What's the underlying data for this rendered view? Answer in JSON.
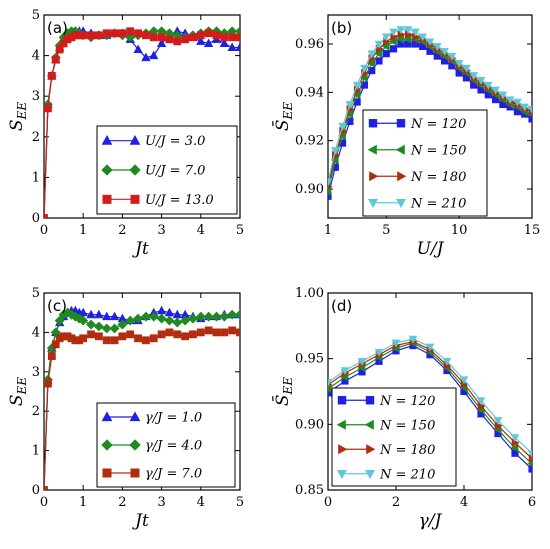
{
  "colors": {
    "blue": "#1f1fe6",
    "green": "#1f8a1f",
    "red": "#d41b1b",
    "brown": "#b02d10",
    "cyan": "#5fc8d8"
  },
  "chart_data": [
    {
      "type": "line",
      "panel_label": "(a)",
      "xlabel": "Jt",
      "ylabel": "S_EE",
      "xlim": [
        0,
        5
      ],
      "ylim": [
        0,
        5
      ],
      "xticks": [
        "0",
        "1",
        "2",
        "3",
        "4",
        "5"
      ],
      "yticks": [
        "0",
        "1",
        "2",
        "3",
        "4",
        "5"
      ],
      "legend_position": "lower-right",
      "series": [
        {
          "name": "U/J = 3.0",
          "marker": "triangle-up",
          "color": "#1f1fe6",
          "x": [
            0,
            0.1,
            0.2,
            0.3,
            0.4,
            0.5,
            0.6,
            0.7,
            0.8,
            0.9,
            1.0,
            1.2,
            1.4,
            1.6,
            1.8,
            2.0,
            2.2,
            2.4,
            2.6,
            2.8,
            3.0,
            3.2,
            3.4,
            3.6,
            3.8,
            4.0,
            4.2,
            4.4,
            4.6,
            4.8,
            5.0
          ],
          "y": [
            0,
            2.8,
            3.5,
            3.9,
            4.2,
            4.4,
            4.5,
            4.55,
            4.6,
            4.6,
            4.6,
            4.55,
            4.5,
            4.5,
            4.55,
            4.55,
            4.4,
            4.15,
            3.95,
            4.0,
            4.3,
            4.5,
            4.6,
            4.55,
            4.45,
            4.35,
            4.3,
            4.4,
            4.3,
            4.2,
            4.2
          ]
        },
        {
          "name": "U/J = 7.0",
          "marker": "diamond",
          "color": "#1f8a1f",
          "x": [
            0,
            0.1,
            0.2,
            0.3,
            0.4,
            0.5,
            0.6,
            0.7,
            0.8,
            0.9,
            1.0,
            1.2,
            1.4,
            1.6,
            1.8,
            2.0,
            2.2,
            2.4,
            2.6,
            2.8,
            3.0,
            3.2,
            3.4,
            3.6,
            3.8,
            4.0,
            4.2,
            4.4,
            4.6,
            4.8,
            5.0
          ],
          "y": [
            0,
            2.8,
            3.5,
            3.95,
            4.25,
            4.45,
            4.55,
            4.6,
            4.6,
            4.55,
            4.5,
            4.45,
            4.5,
            4.5,
            4.55,
            4.5,
            4.45,
            4.5,
            4.55,
            4.6,
            4.6,
            4.55,
            4.5,
            4.45,
            4.5,
            4.55,
            4.6,
            4.6,
            4.55,
            4.6,
            4.6
          ]
        },
        {
          "name": "U/J = 13.0",
          "marker": "square",
          "color": "#d41b1b",
          "x": [
            0,
            0.1,
            0.2,
            0.3,
            0.4,
            0.5,
            0.6,
            0.7,
            0.8,
            0.9,
            1.0,
            1.2,
            1.4,
            1.6,
            1.8,
            2.0,
            2.2,
            2.4,
            2.6,
            2.8,
            3.0,
            3.2,
            3.4,
            3.6,
            3.8,
            4.0,
            4.2,
            4.4,
            4.6,
            4.8,
            5.0
          ],
          "y": [
            0,
            2.7,
            3.5,
            3.9,
            4.15,
            4.3,
            4.4,
            4.45,
            4.5,
            4.5,
            4.5,
            4.5,
            4.5,
            4.55,
            4.55,
            4.55,
            4.6,
            4.55,
            4.5,
            4.45,
            4.45,
            4.4,
            4.35,
            4.4,
            4.45,
            4.5,
            4.55,
            4.5,
            4.45,
            4.45,
            4.45
          ]
        }
      ]
    },
    {
      "type": "line",
      "panel_label": "(b)",
      "xlabel": "U/J",
      "ylabel": "S̄_EE",
      "xlim": [
        1,
        15
      ],
      "ylim": [
        0.888,
        0.972
      ],
      "xticks": [
        "1",
        "5",
        "10",
        "15"
      ],
      "yticks": [
        "0.90",
        "0.92",
        "0.94",
        "0.96"
      ],
      "legend_position": "lower-right",
      "series": [
        {
          "name": "N = 120",
          "marker": "square",
          "color": "#1f1fe6",
          "x": [
            1,
            1.5,
            2,
            2.5,
            3,
            3.5,
            4,
            4.5,
            5,
            5.5,
            6,
            6.5,
            7,
            7.5,
            8,
            8.5,
            9,
            9.5,
            10,
            10.5,
            11,
            11.5,
            12,
            12.5,
            13,
            13.5,
            14,
            14.5,
            15
          ],
          "y": [
            0.897,
            0.909,
            0.919,
            0.928,
            0.936,
            0.943,
            0.949,
            0.953,
            0.956,
            0.958,
            0.96,
            0.96,
            0.96,
            0.959,
            0.957,
            0.955,
            0.953,
            0.951,
            0.948,
            0.946,
            0.943,
            0.941,
            0.939,
            0.937,
            0.935,
            0.934,
            0.932,
            0.931,
            0.929
          ]
        },
        {
          "name": "N = 150",
          "marker": "triangle-left",
          "color": "#1f8a1f",
          "x": [
            1,
            1.5,
            2,
            2.5,
            3,
            3.5,
            4,
            4.5,
            5,
            5.5,
            6,
            6.5,
            7,
            7.5,
            8,
            8.5,
            9,
            9.5,
            10,
            10.5,
            11,
            11.5,
            12,
            12.5,
            13,
            13.5,
            14,
            14.5,
            15
          ],
          "y": [
            0.899,
            0.912,
            0.922,
            0.931,
            0.939,
            0.946,
            0.952,
            0.956,
            0.959,
            0.961,
            0.962,
            0.962,
            0.962,
            0.961,
            0.959,
            0.957,
            0.955,
            0.953,
            0.95,
            0.948,
            0.945,
            0.943,
            0.941,
            0.939,
            0.937,
            0.935,
            0.934,
            0.932,
            0.931
          ]
        },
        {
          "name": "N = 180",
          "marker": "triangle-right",
          "color": "#b02d10",
          "x": [
            1,
            1.5,
            2,
            2.5,
            3,
            3.5,
            4,
            4.5,
            5,
            5.5,
            6,
            6.5,
            7,
            7.5,
            8,
            8.5,
            9,
            9.5,
            10,
            10.5,
            11,
            11.5,
            12,
            12.5,
            13,
            13.5,
            14,
            14.5,
            15
          ],
          "y": [
            0.901,
            0.914,
            0.924,
            0.933,
            0.941,
            0.948,
            0.954,
            0.958,
            0.961,
            0.963,
            0.964,
            0.964,
            0.963,
            0.962,
            0.96,
            0.958,
            0.956,
            0.954,
            0.951,
            0.949,
            0.946,
            0.944,
            0.942,
            0.94,
            0.938,
            0.936,
            0.935,
            0.933,
            0.932
          ]
        },
        {
          "name": "N = 210",
          "marker": "triangle-down",
          "color": "#5fc8d8",
          "x": [
            1,
            1.5,
            2,
            2.5,
            3,
            3.5,
            4,
            4.5,
            5,
            5.5,
            6,
            6.5,
            7,
            7.5,
            8,
            8.5,
            9,
            9.5,
            10,
            10.5,
            11,
            11.5,
            12,
            12.5,
            13,
            13.5,
            14,
            14.5,
            15
          ],
          "y": [
            0.903,
            0.916,
            0.926,
            0.935,
            0.943,
            0.95,
            0.956,
            0.96,
            0.963,
            0.965,
            0.966,
            0.966,
            0.965,
            0.963,
            0.961,
            0.959,
            0.957,
            0.955,
            0.952,
            0.95,
            0.947,
            0.945,
            0.943,
            0.941,
            0.939,
            0.937,
            0.936,
            0.934,
            0.933
          ]
        }
      ]
    },
    {
      "type": "line",
      "panel_label": "(c)",
      "xlabel": "Jt",
      "ylabel": "S_EE",
      "xlim": [
        0,
        5
      ],
      "ylim": [
        0,
        5
      ],
      "xticks": [
        "0",
        "1",
        "2",
        "3",
        "4",
        "5"
      ],
      "yticks": [
        "0",
        "1",
        "2",
        "3",
        "4",
        "5"
      ],
      "legend_position": "lower-right",
      "series": [
        {
          "name": "γ/J = 1.0",
          "marker": "triangle-up",
          "color": "#1f1fe6",
          "x": [
            0,
            0.1,
            0.2,
            0.3,
            0.4,
            0.5,
            0.6,
            0.7,
            0.8,
            0.9,
            1.0,
            1.2,
            1.4,
            1.6,
            1.8,
            2.0,
            2.2,
            2.4,
            2.6,
            2.8,
            3.0,
            3.2,
            3.4,
            3.6,
            3.8,
            4.0,
            4.2,
            4.4,
            4.6,
            4.8,
            5.0
          ],
          "y": [
            0,
            2.8,
            3.6,
            4.0,
            4.25,
            4.4,
            4.5,
            4.55,
            4.55,
            4.5,
            4.5,
            4.45,
            4.45,
            4.4,
            4.4,
            4.35,
            4.3,
            4.3,
            4.4,
            4.5,
            4.55,
            4.5,
            4.45,
            4.45,
            4.4,
            4.35,
            4.4,
            4.4,
            4.45,
            4.45,
            4.45
          ]
        },
        {
          "name": "γ/J = 4.0",
          "marker": "diamond",
          "color": "#1f8a1f",
          "x": [
            0,
            0.1,
            0.2,
            0.3,
            0.4,
            0.5,
            0.6,
            0.7,
            0.8,
            0.9,
            1.0,
            1.2,
            1.4,
            1.6,
            1.8,
            2.0,
            2.2,
            2.4,
            2.6,
            2.8,
            3.0,
            3.2,
            3.4,
            3.6,
            3.8,
            4.0,
            4.2,
            4.4,
            4.6,
            4.8,
            5.0
          ],
          "y": [
            0,
            2.8,
            3.6,
            4.0,
            4.3,
            4.45,
            4.5,
            4.45,
            4.4,
            4.35,
            4.3,
            4.2,
            4.15,
            4.1,
            4.1,
            4.2,
            4.3,
            4.35,
            4.4,
            4.4,
            4.35,
            4.3,
            4.25,
            4.3,
            4.35,
            4.4,
            4.4,
            4.4,
            4.4,
            4.45,
            4.45
          ]
        },
        {
          "name": "γ/J = 7.0",
          "marker": "square",
          "color": "#b02d10",
          "x": [
            0,
            0.1,
            0.2,
            0.3,
            0.4,
            0.5,
            0.6,
            0.7,
            0.8,
            0.9,
            1.0,
            1.2,
            1.4,
            1.6,
            1.8,
            2.0,
            2.2,
            2.4,
            2.6,
            2.8,
            3.0,
            3.2,
            3.4,
            3.6,
            3.8,
            4.0,
            4.2,
            4.4,
            4.6,
            4.8,
            5.0
          ],
          "y": [
            0,
            2.7,
            3.4,
            3.7,
            3.85,
            3.9,
            3.9,
            3.85,
            3.8,
            3.8,
            3.85,
            3.95,
            3.9,
            3.8,
            3.8,
            3.9,
            3.95,
            3.85,
            3.8,
            3.85,
            3.95,
            4.0,
            3.95,
            3.9,
            3.95,
            4.0,
            4.05,
            4.0,
            4.0,
            4.05,
            4.0
          ]
        }
      ]
    },
    {
      "type": "line",
      "panel_label": "(d)",
      "xlabel": "γ/J",
      "ylabel": "S̄_EE",
      "xlim": [
        0,
        6
      ],
      "ylim": [
        0.85,
        1.0
      ],
      "xticks": [
        "0",
        "2",
        "4",
        "6"
      ],
      "yticks": [
        "0.85",
        "0.90",
        "0.95",
        "1.00"
      ],
      "legend_position": "lower-left",
      "series": [
        {
          "name": "N = 120",
          "marker": "square",
          "color": "#1f1fe6",
          "x": [
            0,
            0.5,
            1,
            1.5,
            2,
            2.5,
            3,
            3.5,
            4,
            4.5,
            5,
            5.5,
            6
          ],
          "y": [
            0.924,
            0.933,
            0.94,
            0.948,
            0.956,
            0.96,
            0.953,
            0.941,
            0.925,
            0.908,
            0.893,
            0.878,
            0.866
          ]
        },
        {
          "name": "N = 150",
          "marker": "triangle-left",
          "color": "#1f8a1f",
          "x": [
            0,
            0.5,
            1,
            1.5,
            2,
            2.5,
            3,
            3.5,
            4,
            4.5,
            5,
            5.5,
            6
          ],
          "y": [
            0.927,
            0.936,
            0.943,
            0.951,
            0.958,
            0.962,
            0.955,
            0.943,
            0.928,
            0.911,
            0.896,
            0.882,
            0.87
          ]
        },
        {
          "name": "N = 180",
          "marker": "triangle-right",
          "color": "#b02d10",
          "x": [
            0,
            0.5,
            1,
            1.5,
            2,
            2.5,
            3,
            3.5,
            4,
            4.5,
            5,
            5.5,
            6
          ],
          "y": [
            0.93,
            0.939,
            0.946,
            0.953,
            0.96,
            0.963,
            0.957,
            0.945,
            0.931,
            0.914,
            0.899,
            0.886,
            0.874
          ]
        },
        {
          "name": "N = 210",
          "marker": "triangle-down",
          "color": "#5fc8d8",
          "x": [
            0,
            0.5,
            1,
            1.5,
            2,
            2.5,
            3,
            3.5,
            4,
            4.5,
            5,
            5.5,
            6
          ],
          "y": [
            0.932,
            0.941,
            0.948,
            0.955,
            0.962,
            0.965,
            0.959,
            0.948,
            0.934,
            0.918,
            0.903,
            0.89,
            0.878
          ]
        }
      ]
    }
  ]
}
